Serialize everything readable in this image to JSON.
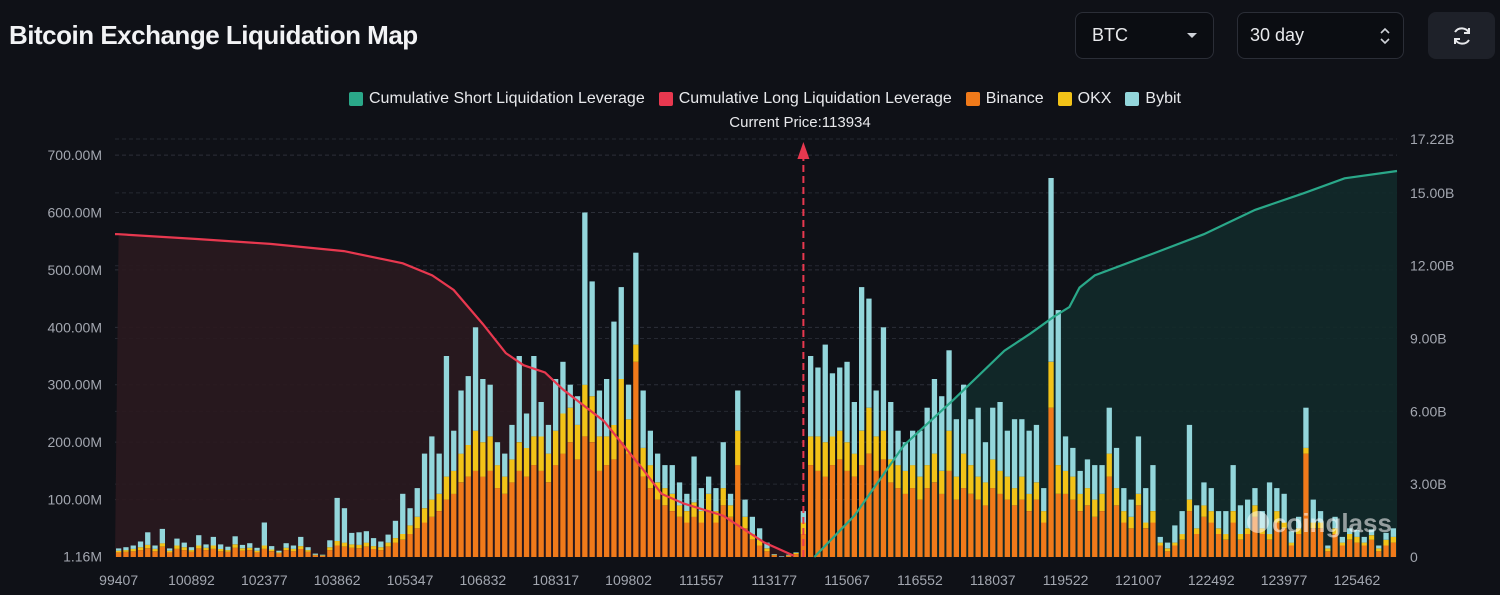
{
  "header": {
    "title": "Bitcoin Exchange Liquidation Map",
    "asset_select": "BTC",
    "range_select": "30 day",
    "refresh_icon": "refresh-icon"
  },
  "watermark": "coinglass",
  "chart_data": {
    "type": "bar",
    "stacked": true,
    "current_price_label": "Current Price:113934",
    "current_price": 113934,
    "legend_placement": "top",
    "grid": true,
    "legend": [
      {
        "name": "Cumulative Short Liquidation Leverage",
        "color": "#2aa889"
      },
      {
        "name": "Cumulative Long Liquidation Leverage",
        "color": "#e8384f"
      },
      {
        "name": "Binance",
        "color": "#f07a1a"
      },
      {
        "name": "OKX",
        "color": "#f2c318"
      },
      {
        "name": "Bybit",
        "color": "#93d6db"
      }
    ],
    "x_tick_labels": [
      "99407",
      "100892",
      "102377",
      "103862",
      "105347",
      "106832",
      "108317",
      "109802",
      "111557",
      "113177",
      "115067",
      "116552",
      "118037",
      "119522",
      "121007",
      "122492",
      "123977",
      "125462"
    ],
    "left_axis": {
      "tick_labels": [
        "1.16M",
        "100.00M",
        "200.00M",
        "300.00M",
        "400.00M",
        "500.00M",
        "600.00M",
        "700.00M"
      ],
      "ticks": [
        1.16,
        100,
        200,
        300,
        400,
        500,
        600,
        700
      ],
      "unit": "M",
      "range": [
        0,
        728
      ]
    },
    "right_axis": {
      "tick_labels": [
        "0",
        "3.00B",
        "6.00B",
        "9.00B",
        "12.00B",
        "15.00B",
        "17.22B"
      ],
      "ticks": [
        0,
        3,
        6,
        9,
        12,
        15,
        17.22
      ],
      "unit": "B",
      "range": [
        0,
        17.22
      ]
    },
    "bars_binance_okx_bybit_M": [
      [
        8,
        3,
        4
      ],
      [
        9,
        3,
        5
      ],
      [
        10,
        4,
        6
      ],
      [
        12,
        5,
        10
      ],
      [
        15,
        6,
        22
      ],
      [
        10,
        4,
        6
      ],
      [
        18,
        6,
        25
      ],
      [
        8,
        3,
        4
      ],
      [
        14,
        6,
        12
      ],
      [
        12,
        5,
        8
      ],
      [
        9,
        3,
        5
      ],
      [
        15,
        5,
        18
      ],
      [
        12,
        4,
        6
      ],
      [
        14,
        6,
        15
      ],
      [
        10,
        4,
        8
      ],
      [
        9,
        3,
        6
      ],
      [
        16,
        6,
        14
      ],
      [
        11,
        4,
        6
      ],
      [
        12,
        4,
        8
      ],
      [
        8,
        3,
        5
      ],
      [
        14,
        6,
        40
      ],
      [
        10,
        3,
        6
      ],
      [
        6,
        2,
        3
      ],
      [
        12,
        4,
        8
      ],
      [
        10,
        4,
        6
      ],
      [
        14,
        5,
        16
      ],
      [
        9,
        3,
        5
      ],
      [
        3,
        1,
        2
      ],
      [
        2,
        1,
        1
      ],
      [
        12,
        5,
        12
      ],
      [
        20,
        8,
        75
      ],
      [
        18,
        7,
        60
      ],
      [
        16,
        6,
        20
      ],
      [
        15,
        6,
        22
      ],
      [
        18,
        7,
        20
      ],
      [
        14,
        5,
        14
      ],
      [
        12,
        5,
        10
      ],
      [
        18,
        7,
        14
      ],
      [
        25,
        8,
        30
      ],
      [
        30,
        10,
        70
      ],
      [
        40,
        15,
        30
      ],
      [
        50,
        20,
        50
      ],
      [
        60,
        25,
        95
      ],
      [
        70,
        30,
        110
      ],
      [
        80,
        30,
        70
      ],
      [
        100,
        40,
        210
      ],
      [
        110,
        40,
        70
      ],
      [
        130,
        50,
        110
      ],
      [
        140,
        55,
        120
      ],
      [
        150,
        70,
        180
      ],
      [
        140,
        60,
        110
      ],
      [
        150,
        60,
        90
      ],
      [
        120,
        40,
        40
      ],
      [
        110,
        30,
        40
      ],
      [
        130,
        40,
        60
      ],
      [
        150,
        50,
        150
      ],
      [
        140,
        50,
        60
      ],
      [
        160,
        50,
        140
      ],
      [
        150,
        60,
        60
      ],
      [
        130,
        50,
        50
      ],
      [
        160,
        60,
        90
      ],
      [
        180,
        70,
        90
      ],
      [
        200,
        60,
        40
      ],
      [
        170,
        60,
        50
      ],
      [
        210,
        90,
        300
      ],
      [
        200,
        80,
        200
      ],
      [
        150,
        60,
        80
      ],
      [
        160,
        50,
        100
      ],
      [
        170,
        60,
        180
      ],
      [
        200,
        110,
        160
      ],
      [
        180,
        60,
        60
      ],
      [
        340,
        30,
        160
      ],
      [
        140,
        50,
        100
      ],
      [
        120,
        40,
        60
      ],
      [
        100,
        30,
        50
      ],
      [
        90,
        30,
        40
      ],
      [
        80,
        30,
        50
      ],
      [
        70,
        20,
        40
      ],
      [
        60,
        20,
        30
      ],
      [
        70,
        25,
        80
      ],
      [
        60,
        20,
        40
      ],
      [
        80,
        30,
        30
      ],
      [
        60,
        20,
        40
      ],
      [
        90,
        30,
        80
      ],
      [
        70,
        20,
        20
      ],
      [
        160,
        60,
        70
      ],
      [
        50,
        20,
        30
      ],
      [
        30,
        10,
        30
      ],
      [
        20,
        10,
        20
      ],
      [
        10,
        5,
        10
      ],
      [
        3,
        1,
        1
      ],
      [
        0,
        0,
        1
      ],
      [
        2,
        1,
        1
      ],
      [
        5,
        2,
        1
      ],
      [
        40,
        20,
        20
      ],
      [
        160,
        50,
        140
      ],
      [
        150,
        60,
        120
      ],
      [
        140,
        60,
        170
      ],
      [
        160,
        50,
        110
      ],
      [
        170,
        50,
        110
      ],
      [
        150,
        50,
        140
      ],
      [
        140,
        40,
        90
      ],
      [
        160,
        60,
        250
      ],
      [
        180,
        80,
        190
      ],
      [
        150,
        60,
        80
      ],
      [
        170,
        50,
        180
      ],
      [
        130,
        40,
        100
      ],
      [
        120,
        40,
        60
      ],
      [
        110,
        40,
        50
      ],
      [
        120,
        40,
        60
      ],
      [
        100,
        40,
        80
      ],
      [
        120,
        40,
        100
      ],
      [
        130,
        50,
        130
      ],
      [
        110,
        40,
        130
      ],
      [
        150,
        70,
        140
      ],
      [
        100,
        40,
        100
      ],
      [
        120,
        60,
        120
      ],
      [
        110,
        50,
        80
      ],
      [
        100,
        40,
        120
      ],
      [
        90,
        40,
        70
      ],
      [
        120,
        50,
        90
      ],
      [
        110,
        40,
        120
      ],
      [
        100,
        40,
        80
      ],
      [
        90,
        30,
        120
      ],
      [
        100,
        40,
        100
      ],
      [
        80,
        30,
        110
      ],
      [
        100,
        30,
        100
      ],
      [
        60,
        20,
        40
      ],
      [
        260,
        80,
        320
      ],
      [
        110,
        50,
        270
      ],
      [
        110,
        40,
        60
      ],
      [
        100,
        40,
        50
      ],
      [
        80,
        30,
        40
      ],
      [
        90,
        30,
        50
      ],
      [
        70,
        30,
        60
      ],
      [
        80,
        30,
        50
      ],
      [
        140,
        40,
        80
      ],
      [
        90,
        30,
        70
      ],
      [
        60,
        20,
        40
      ],
      [
        50,
        20,
        30
      ],
      [
        90,
        20,
        100
      ],
      [
        50,
        10,
        60
      ],
      [
        60,
        20,
        80
      ],
      [
        20,
        5,
        10
      ],
      [
        10,
        5,
        10
      ],
      [
        20,
        5,
        30
      ],
      [
        30,
        10,
        40
      ],
      [
        80,
        20,
        130
      ],
      [
        40,
        10,
        40
      ],
      [
        70,
        20,
        40
      ],
      [
        60,
        20,
        40
      ],
      [
        40,
        10,
        30
      ],
      [
        30,
        10,
        40
      ],
      [
        60,
        20,
        80
      ],
      [
        30,
        10,
        50
      ],
      [
        40,
        10,
        50
      ],
      [
        70,
        20,
        30
      ],
      [
        40,
        10,
        30
      ],
      [
        30,
        10,
        90
      ],
      [
        60,
        20,
        40
      ],
      [
        50,
        10,
        50
      ],
      [
        20,
        5,
        20
      ],
      [
        40,
        10,
        20
      ],
      [
        180,
        10,
        70
      ],
      [
        50,
        10,
        40
      ],
      [
        50,
        10,
        20
      ],
      [
        10,
        5,
        5
      ],
      [
        40,
        10,
        20
      ],
      [
        20,
        5,
        10
      ],
      [
        30,
        10,
        10
      ],
      [
        25,
        10,
        12
      ],
      [
        20,
        5,
        10
      ],
      [
        30,
        8,
        10
      ],
      [
        10,
        5,
        5
      ],
      [
        20,
        10,
        12
      ],
      [
        25,
        10,
        15
      ]
    ],
    "cumulative_long_B": [
      [
        99407,
        13.3
      ],
      [
        101000,
        13.1
      ],
      [
        102500,
        12.9
      ],
      [
        104000,
        12.6
      ],
      [
        105200,
        12.1
      ],
      [
        105800,
        11.6
      ],
      [
        106238,
        11.0
      ],
      [
        106832,
        9.6
      ],
      [
        107300,
        8.4
      ],
      [
        107660,
        7.9
      ],
      [
        108100,
        7.6
      ],
      [
        108466,
        6.9
      ],
      [
        109300,
        5.6
      ],
      [
        110153,
        3.6
      ],
      [
        110600,
        2.6
      ],
      [
        111136,
        2.2
      ],
      [
        112043,
        1.7
      ],
      [
        112950,
        0.6
      ],
      [
        113688,
        0.05
      ]
    ],
    "cumulative_short_B": [
      [
        114217,
        0
      ],
      [
        115216,
        1.7
      ],
      [
        116226,
        4.6
      ],
      [
        117250,
        6.5
      ],
      [
        118275,
        8.5
      ],
      [
        118800,
        9.2
      ],
      [
        119285,
        9.9
      ],
      [
        119600,
        10.3
      ],
      [
        119805,
        11.1
      ],
      [
        120117,
        11.6
      ],
      [
        121304,
        12.5
      ],
      [
        122343,
        13.3
      ],
      [
        123383,
        14.3
      ],
      [
        124393,
        15.0
      ],
      [
        125210,
        15.6
      ],
      [
        126353,
        15.9
      ]
    ]
  }
}
